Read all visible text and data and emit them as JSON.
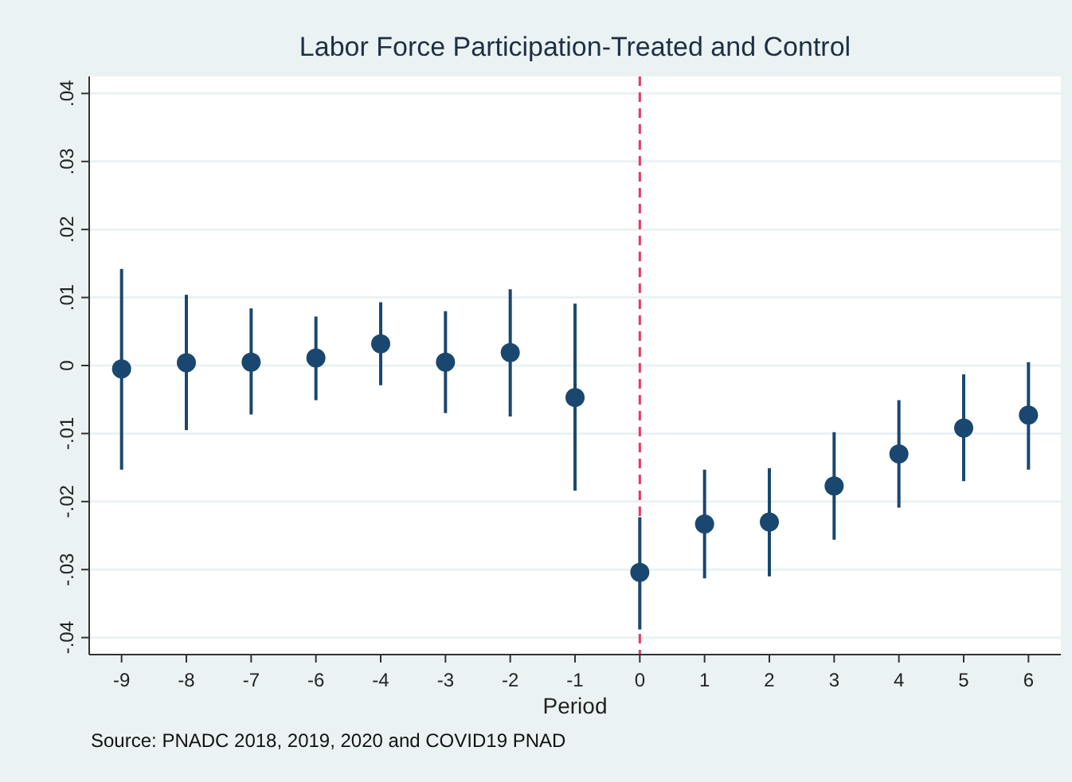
{
  "chart_data": {
    "type": "scatter",
    "title": "Labor Force Participation-Treated and Control",
    "xlabel": "Period",
    "annotations": [
      "Source: PNADC 2018, 2019, 2020 and COVID19 PNAD"
    ],
    "categories": [
      "-9",
      "-8",
      "-7",
      "-6",
      "-4",
      "-3",
      "-2",
      "-1",
      "0",
      "1",
      "2",
      "3",
      "4",
      "5",
      "6"
    ],
    "series": [
      {
        "color": "#1a476f",
        "values": [
          -0.0005,
          0.0004,
          0.0005,
          0.0011,
          0.0032,
          0.0005,
          0.0019,
          -0.0047,
          -0.0304,
          -0.0233,
          -0.023,
          -0.0177,
          -0.013,
          -0.0092,
          -0.0073
        ],
        "errors": [
          [
            -0.0153,
            0.0142
          ],
          [
            -0.0095,
            0.0104
          ],
          [
            -0.0072,
            0.0084
          ],
          [
            -0.0051,
            0.0072
          ],
          [
            -0.0029,
            0.0093
          ],
          [
            -0.007,
            0.008
          ],
          [
            -0.0075,
            0.0112
          ],
          [
            -0.0184,
            0.0091
          ],
          [
            -0.0388,
            -0.0223
          ],
          [
            -0.0313,
            -0.0153
          ],
          [
            -0.031,
            -0.0151
          ],
          [
            -0.0256,
            -0.0098
          ],
          [
            -0.0209,
            -0.0051
          ],
          [
            -0.017,
            -0.0013
          ],
          [
            -0.0153,
            0.0005
          ]
        ]
      }
    ],
    "ylim": [
      -0.0425,
      0.0425
    ],
    "yticks": [
      {
        "value": -0.04,
        "label": "-.04"
      },
      {
        "value": -0.03,
        "label": "-.03"
      },
      {
        "value": -0.02,
        "label": "-.02"
      },
      {
        "value": -0.01,
        "label": "-.01"
      },
      {
        "value": 0,
        "label": "0"
      },
      {
        "value": 0.01,
        "label": ".01"
      },
      {
        "value": 0.02,
        "label": ".02"
      },
      {
        "value": 0.03,
        "label": ".03"
      },
      {
        "value": 0.04,
        "label": ".04"
      }
    ],
    "grid": "y",
    "marker": "circle",
    "ref_lines": [
      {
        "axis": "x",
        "value": "0",
        "color": "#e8395e",
        "line_style": "dashed"
      }
    ]
  }
}
